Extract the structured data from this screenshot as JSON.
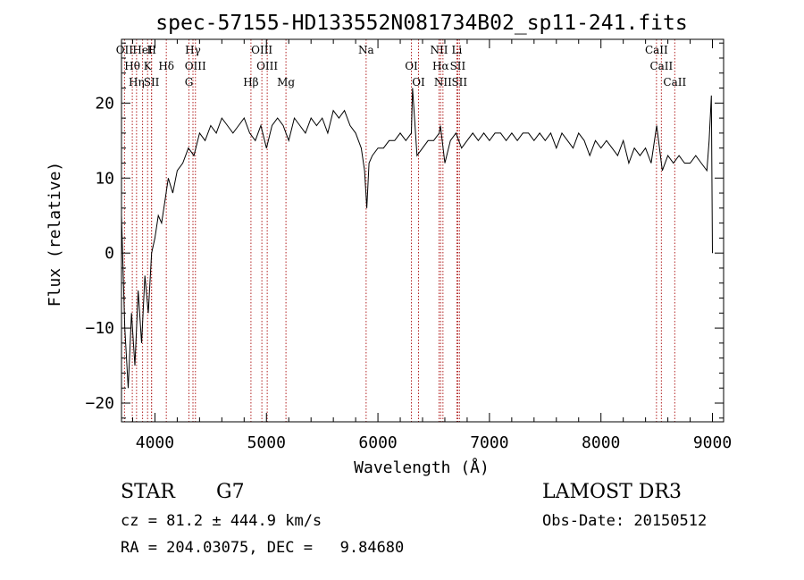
{
  "chart_data": {
    "type": "line",
    "title": "spec-57155-HD133552N081734B02_sp11-241.fits",
    "xlabel": "Wavelength (Å)",
    "ylabel": "Flux (relative)",
    "xlim": [
      3700,
      9100
    ],
    "ylim": [
      -22.5,
      28.5
    ],
    "xticks": [
      4000,
      5000,
      6000,
      7000,
      8000,
      9000
    ],
    "yticks": [
      -20,
      -10,
      0,
      10,
      20
    ],
    "grid": false,
    "series": [
      {
        "x": [
          3700,
          3730,
          3760,
          3790,
          3820,
          3850,
          3880,
          3910,
          3940,
          3970,
          4000,
          4030,
          4060,
          4090,
          4120,
          4160,
          4200,
          4250,
          4300,
          4350,
          4400,
          4450,
          4500,
          4550,
          4600,
          4650,
          4700,
          4750,
          4800,
          4850,
          4900,
          4950,
          5000,
          5050,
          5100,
          5150,
          5200,
          5250,
          5300,
          5350,
          5400,
          5450,
          5500,
          5550,
          5600,
          5650,
          5700,
          5750,
          5800,
          5850,
          5880,
          5900,
          5920,
          5950,
          6000,
          6050,
          6100,
          6150,
          6200,
          6250,
          6300,
          6310,
          6350,
          6400,
          6450,
          6500,
          6550,
          6560,
          6600,
          6650,
          6700,
          6750,
          6800,
          6850,
          6900,
          6950,
          7000,
          7050,
          7100,
          7150,
          7200,
          7250,
          7300,
          7350,
          7400,
          7450,
          7500,
          7550,
          7600,
          7650,
          7700,
          7750,
          7800,
          7850,
          7900,
          7950,
          8000,
          8050,
          8100,
          8150,
          8200,
          8250,
          8300,
          8350,
          8400,
          8450,
          8500,
          8550,
          8600,
          8650,
          8700,
          8750,
          8800,
          8850,
          8900,
          8950,
          8970,
          8990,
          9000
        ],
        "y": [
          5,
          -10,
          -18,
          -8,
          -15,
          -5,
          -12,
          -3,
          -8,
          0,
          2,
          5,
          4,
          7,
          10,
          8,
          11,
          12,
          14,
          13,
          16,
          15,
          17,
          16,
          18,
          17,
          16,
          17,
          18,
          16,
          15,
          17,
          14,
          17,
          18,
          17,
          15,
          18,
          17,
          16,
          18,
          17,
          18,
          16,
          19,
          18,
          19,
          17,
          16,
          14,
          11,
          6,
          12,
          13,
          14,
          14,
          15,
          15,
          16,
          15,
          16,
          22,
          13,
          14,
          15,
          15,
          16,
          17,
          12,
          15,
          16,
          14,
          15,
          16,
          15,
          16,
          15,
          16,
          16,
          15,
          16,
          15,
          16,
          16,
          15,
          16,
          15,
          16,
          14,
          16,
          15,
          14,
          16,
          15,
          13,
          15,
          14,
          15,
          14,
          13,
          15,
          12,
          14,
          13,
          14,
          12,
          17,
          11,
          13,
          12,
          13,
          12,
          12,
          13,
          12,
          11,
          15,
          21,
          0
        ]
      }
    ],
    "line_markers": [
      {
        "name": "OII",
        "x": 3727
      },
      {
        "name": "Hθ",
        "x": 3797
      },
      {
        "name": "Hη",
        "x": 3835
      },
      {
        "name": "HeI",
        "x": 3889
      },
      {
        "name": "K",
        "x": 3934
      },
      {
        "name": "SII",
        "x": 3969
      },
      {
        "name": "H",
        "x": 3970
      },
      {
        "name": "Hδ",
        "x": 4102
      },
      {
        "name": "G",
        "x": 4305
      },
      {
        "name": "Hγ",
        "x": 4341
      },
      {
        "name": "OIII",
        "x": 4363
      },
      {
        "name": "Hβ",
        "x": 4861
      },
      {
        "name": "OIII",
        "x": 4959
      },
      {
        "name": "OIII",
        "x": 5007
      },
      {
        "name": "Mg",
        "x": 5175
      },
      {
        "name": "Na",
        "x": 5894
      },
      {
        "name": "OI",
        "x": 6300
      },
      {
        "name": "OI",
        "x": 6364
      },
      {
        "name": "NII",
        "x": 6548
      },
      {
        "name": "Hα",
        "x": 6563
      },
      {
        "name": "NII",
        "x": 6583
      },
      {
        "name": "Li",
        "x": 6708
      },
      {
        "name": "SII",
        "x": 6716
      },
      {
        "name": "SII",
        "x": 6731
      },
      {
        "name": "CaII",
        "x": 8498
      },
      {
        "name": "CaII",
        "x": 8542
      },
      {
        "name": "CaII",
        "x": 8662
      }
    ],
    "colors": {
      "spectrum": "#000000",
      "markers": "#b22222"
    }
  },
  "info": {
    "object_class": "STAR",
    "subclass": "G7",
    "survey": "LAMOST DR3",
    "redshift_line": "cz = 81.2 ± 444.9 km/s",
    "obs_date_line": "Obs-Date: 20150512",
    "coords_line": "RA = 204.03075, DEC =   9.84680"
  }
}
